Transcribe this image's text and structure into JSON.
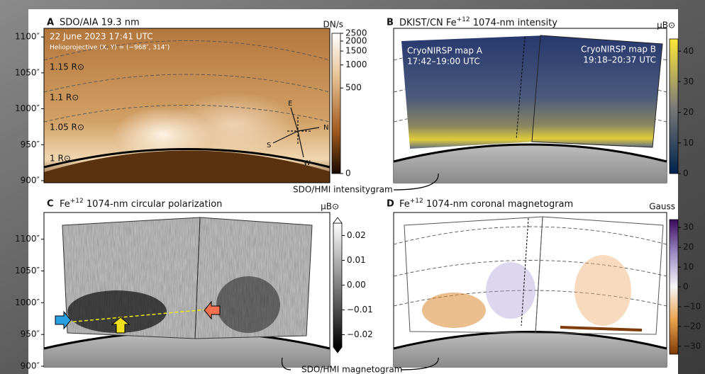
{
  "panels": [
    {
      "letter": "A",
      "title": "SDO/AIA 19.3 nm",
      "ylim": [
        900,
        1112
      ],
      "yticks": [
        {
          "value": 1100,
          "label": "1100″"
        },
        {
          "value": 1050,
          "label": "1050″"
        },
        {
          "value": 1000,
          "label": "1000″"
        },
        {
          "value": 950,
          "label": "950″"
        },
        {
          "value": 900,
          "label": "900″"
        }
      ],
      "colorbar": {
        "unit": "DN/s",
        "lim": [
          0,
          2500
        ],
        "ticks": [
          2500,
          2000,
          1500,
          1000,
          500,
          0
        ]
      },
      "date": "22 June 2023 17:41 UTC",
      "coordinates": "Helioprojective (X, Y) = (−968″, 314″)",
      "contours": [
        "1.15 R⊙",
        "1.1 R⊙",
        "1.05 R⊙",
        "1 R⊙"
      ],
      "compass": [
        "E",
        "N",
        "S",
        "W"
      ]
    },
    {
      "letter": "B",
      "title": {
        "prefix": "DKIST/CN Fe",
        "sup": "+12",
        "rest": " 1074-nm intensity"
      },
      "colorbar": {
        "unit": "μB⊙",
        "lim": [
          0,
          44
        ],
        "ticks": [
          40,
          30,
          20,
          10,
          0
        ]
      },
      "maps": [
        {
          "name": "CryoNIRSP map A",
          "time": "17:42–19:00 UTC"
        },
        {
          "name": "CryoNIRSP map B",
          "time": "19:18–20:37 UTC"
        }
      ]
    },
    {
      "letter": "C",
      "title": {
        "prefix": "Fe",
        "sup": "+12",
        "rest": " 1074-nm circular polarization"
      },
      "ylim": [
        900,
        1122
      ],
      "yticks": [
        {
          "value": 1100,
          "label": "1100″"
        },
        {
          "value": 1050,
          "label": "1050″"
        },
        {
          "value": 1000,
          "label": "1000″"
        },
        {
          "value": 950,
          "label": "950″"
        },
        {
          "value": 900,
          "label": "900″"
        }
      ],
      "colorbar": {
        "unit": "μB⊙",
        "lim": [
          -0.025,
          0.025
        ],
        "ticks": [
          0.02,
          0.01,
          {
            "value": 0,
            "label": "0.00"
          },
          {
            "value": -0.01,
            "label": "−0.01"
          },
          {
            "value": -0.02,
            "label": "−0.02"
          }
        ]
      }
    },
    {
      "letter": "D",
      "title": {
        "prefix": "Fe",
        "sup": "+12",
        "rest": " 1074-nm coronal magnetogram"
      },
      "colorbar": {
        "unit": "Gauss",
        "lim": [
          -34,
          34
        ],
        "ticks": [
          30,
          20,
          10,
          0,
          {
            "value": -10,
            "label": "−10"
          },
          {
            "value": -20,
            "label": "−20"
          },
          {
            "value": -30,
            "label": "−30"
          }
        ]
      }
    }
  ],
  "callouts": [
    "SDO/HMI intensitygram",
    "SDO/HMI magnetogram"
  ]
}
